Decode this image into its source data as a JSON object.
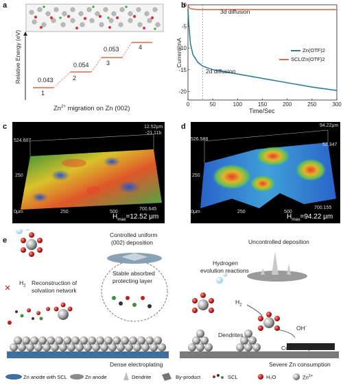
{
  "panel_a": {
    "label": "a",
    "ylabel": "Relative Energy (eV)",
    "caption_prefix": "Zn",
    "caption_sup": "2+",
    "caption_suffix": " migration on Zn (002)",
    "barriers": [
      "0.043",
      "0.054",
      "0.053"
    ],
    "steps": [
      "1",
      "2",
      "3",
      "4"
    ],
    "step_color": "#e2674a"
  },
  "panel_b": {
    "label": "b",
    "annotation_top": "3d diffusion",
    "annotation_bottom": "2d diffusion",
    "chart_data": {
      "type": "line",
      "xlabel": "Time/Sec",
      "ylabel": "Current/mA",
      "xlim": [
        0,
        300
      ],
      "ylim": [
        -22,
        0
      ],
      "xticks": [
        "0",
        "50",
        "100",
        "150",
        "200",
        "250",
        "300"
      ],
      "yticks": [
        "0",
        "-5",
        "-10",
        "-15",
        "-20"
      ],
      "legend_position": "right",
      "series": [
        {
          "name": "Zn(OTF)2",
          "color": "#2e7b9a",
          "x": [
            0,
            2,
            5,
            10,
            20,
            30,
            50,
            75,
            100,
            150,
            200,
            250,
            300
          ],
          "y": [
            -1,
            -5,
            -9,
            -11.5,
            -13.3,
            -14.2,
            -15,
            -15.5,
            -16,
            -17,
            -18,
            -19,
            -19.8
          ]
        },
        {
          "name": "SCL/Zn(OTF)2",
          "color": "#e2674a",
          "x": [
            0,
            2,
            5,
            10,
            20,
            50,
            100,
            150,
            200,
            250,
            300
          ],
          "y": [
            -0.2,
            -0.6,
            -0.9,
            -1.0,
            -1.1,
            -1.1,
            -1.1,
            -1.1,
            -1.1,
            -1.1,
            -1.1
          ]
        }
      ]
    }
  },
  "panel_c": {
    "label": "c",
    "hmax_prefix": "H",
    "hmax_sub": "max",
    "hmax_value": "=12.52 μm",
    "top_value": "12.52μm",
    "mid_value": "-21.11b",
    "axis_left": "524.607",
    "axis_tick": "250",
    "axis_origin": "0μm",
    "axis_mid": "250",
    "axis_mid2": "500",
    "axis_right": "700.645"
  },
  "panel_d": {
    "label": "d",
    "hmax_prefix": "H",
    "hmax_sub": "max",
    "hmax_value": "=94.22 μm",
    "top_value": "94.22μm",
    "mid_value": "52.347",
    "axis_left": "526.588",
    "axis_tick": "250",
    "axis_origin": "0μm",
    "axis_mid": "250",
    "axis_mid2": "500",
    "axis_right": "700.155"
  },
  "panel_e": {
    "label": "e",
    "controlled_line1": "Controlled uniform",
    "controlled_line2": "(002)  deposition",
    "h2": "H",
    "h2_sub": "2",
    "reconstruction_line1": "Reconstruction of",
    "reconstruction_line2": "solvation network",
    "stable_line1": "Stable absorbed",
    "stable_line2": "protecting layer",
    "dense": "Dense electroplating",
    "uncontrolled": "Uncontrolled deposition",
    "hydrogen_line1": "Hydrogen",
    "hydrogen_line2": "evolution reactions",
    "h2_right": "H",
    "h2_right_sub": "2",
    "oh": "OH",
    "oh_sup": "-",
    "dendrites": "Dendrites",
    "corrosion": "Corrosion product",
    "severe": "Severe Zn consumption",
    "legend": {
      "zn_scl": "Zn anode with SCL",
      "zn_anode": "Zn anode",
      "dendrite": "Dendrite",
      "byproduct": "By-product",
      "scl": "SCL",
      "h2o": "H₂O",
      "zn2": "Zn",
      "zn2_sup": "2+"
    }
  }
}
